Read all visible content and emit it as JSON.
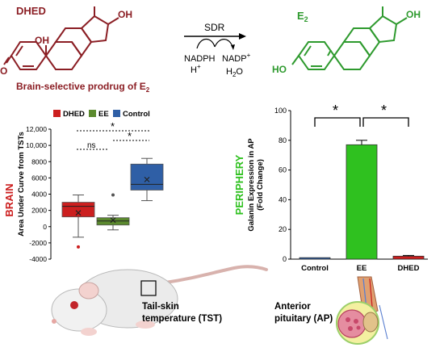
{
  "reaction": {
    "reactant_name": "DHED",
    "reactant_oh": "OH",
    "reactant_oh2": "OH",
    "reactant_o": "O",
    "enzyme": "SDR",
    "cofactor_in_1": "NADPH",
    "cofactor_in_2": "H",
    "cofactor_in_2_sup": "+",
    "cofactor_out_1": "NADP",
    "cofactor_out_1_sup": "+",
    "cofactor_out_2": "H",
    "cofactor_out_2_sub": "2",
    "cofactor_out_2_end": "O",
    "product_name": "E",
    "product_name_sub": "2",
    "product_oh": "OH",
    "product_ho": "HO",
    "caption": "Brain-selective prodrug of E",
    "caption_sub": "2"
  },
  "brain_panel": {
    "region_label": "BRAIN",
    "legend": [
      {
        "label": "DHED",
        "color": "#cc1f1f"
      },
      {
        "label": "EE",
        "color": "#5b8a2e"
      },
      {
        "label": "Control",
        "color": "#2f5fa6"
      }
    ],
    "significance": [
      "ns",
      "*",
      "*"
    ]
  },
  "periphery_panel": {
    "region_label": "PERIPHERY",
    "significance": [
      "*",
      "*"
    ]
  },
  "images": {
    "rat_label_1": "Tail-skin",
    "rat_label_2": "temperature (TST)",
    "pituitary_label_1": "Anterior",
    "pituitary_label_2": "pituitary (AP)"
  },
  "chart_data": [
    {
      "type": "box",
      "title": "",
      "xlabel": "",
      "ylabel": "Area Under Curve from TSTs",
      "ylim": [
        -4000,
        12000
      ],
      "yticks": [
        "-4000",
        "-2000",
        "0",
        "2000",
        "4000",
        "6000",
        "8000",
        "10,000",
        "12,000"
      ],
      "categories": [
        "DHED",
        "EE",
        "Control"
      ],
      "colors": [
        "#cc1f1f",
        "#5b8a2e",
        "#2f5fa6"
      ],
      "series": [
        {
          "name": "DHED",
          "whisker_low": -1300,
          "q1": 1200,
          "median": 2500,
          "q3": 3000,
          "whisker_high": 3900,
          "mean": 1700,
          "outliers": [
            -2500
          ]
        },
        {
          "name": "EE",
          "whisker_low": -400,
          "q1": 200,
          "median": 700,
          "q3": 1100,
          "whisker_high": 1400,
          "mean": 800,
          "outliers": [
            3900
          ]
        },
        {
          "name": "Control",
          "whisker_low": 3200,
          "q1": 4500,
          "median": 5200,
          "q3": 7700,
          "whisker_high": 8400,
          "mean": 5800,
          "outliers": []
        }
      ]
    },
    {
      "type": "bar",
      "title": "",
      "xlabel": "",
      "ylabel": "Galanin Expression in AP",
      "ylabel_2": "(Fold Change)",
      "ylim": [
        0,
        100
      ],
      "yticks": [
        "0",
        "20",
        "40",
        "60",
        "80",
        "100"
      ],
      "categories": [
        "Control",
        "EE",
        "DHED"
      ],
      "values": [
        1,
        77,
        2
      ],
      "errors": [
        0.2,
        3,
        0.5
      ],
      "colors": [
        "#2f5fa6",
        "#2fc11f",
        "#cc1f1f"
      ]
    }
  ]
}
